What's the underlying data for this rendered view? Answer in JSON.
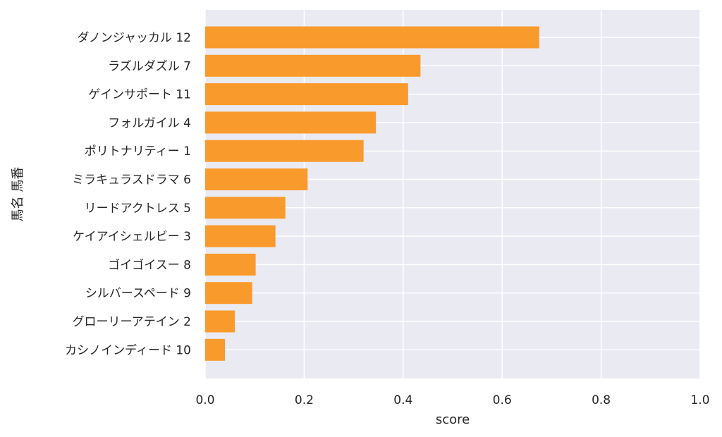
{
  "chart_data": {
    "type": "bar",
    "orientation": "horizontal",
    "categories": [
      "ダノンジャッカル 12",
      "ラズルダズル 7",
      "ゲインサポート 11",
      "フォルガイル 4",
      "ポリトナリティー 1",
      "ミラキュラスドラマ 6",
      "リードアクトレス 5",
      "ケイアイシェルビー 3",
      "ゴイゴイスー 8",
      "シルバースペード 9",
      "グローリーアテイン 2",
      "カシノインディード 10"
    ],
    "values": [
      0.675,
      0.435,
      0.41,
      0.345,
      0.32,
      0.207,
      0.162,
      0.142,
      0.102,
      0.095,
      0.06,
      0.04
    ],
    "xlabel": "score",
    "ylabel": "馬名 馬番",
    "xlim": [
      0,
      1.0
    ],
    "xticks": [
      "0.0",
      "0.2",
      "0.4",
      "0.6",
      "0.8",
      "1.0"
    ],
    "grid": true,
    "colors": {
      "bar": "#f99a2c",
      "plot_bg": "#eaeaf2",
      "grid": "#ffffff",
      "text": "#262626"
    }
  }
}
